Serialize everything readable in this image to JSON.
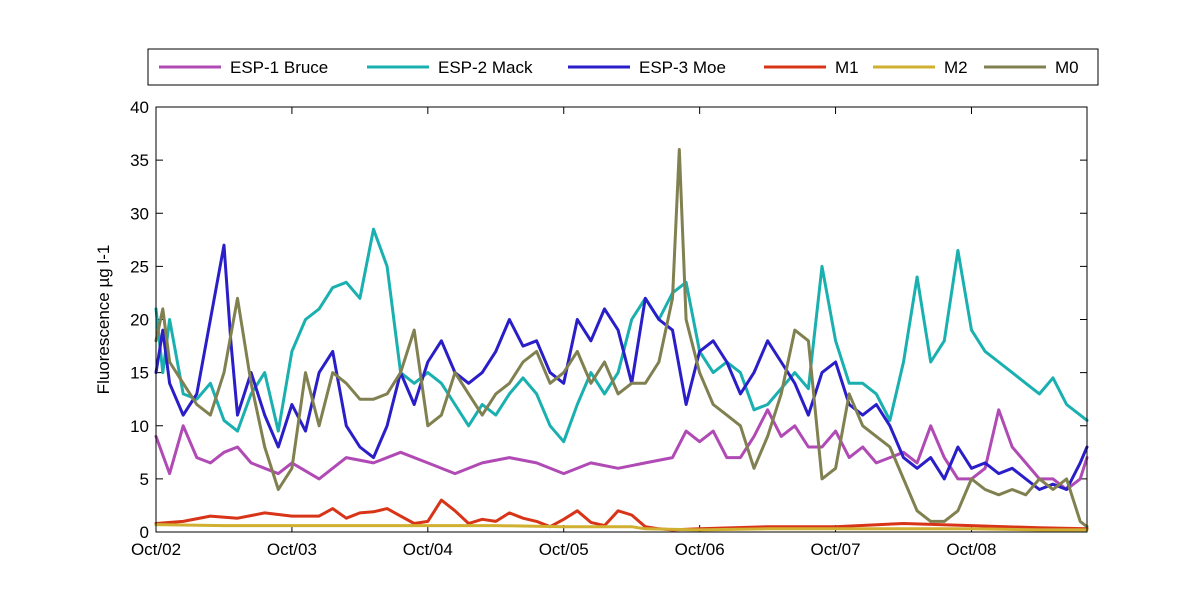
{
  "chart_data": {
    "type": "line",
    "title": "",
    "xlabel": "",
    "ylabel": "Fluorescence µg l-1",
    "ylim": [
      0,
      40
    ],
    "yticks": [
      0,
      5,
      10,
      15,
      20,
      25,
      30,
      35,
      40
    ],
    "xlim": [
      0,
      6.85
    ],
    "xticks": [
      0,
      1,
      2,
      3,
      4,
      5,
      6
    ],
    "xticklabels": [
      "Oct/02",
      "Oct/03",
      "Oct/04",
      "Oct/05",
      "Oct/06",
      "Oct/07",
      "Oct/08"
    ],
    "grid": false,
    "legend_placement": "top, horizontal, outside",
    "series": [
      {
        "name": "ESP-1 Bruce",
        "color": "#b04ab4",
        "x": [
          0,
          0.1,
          0.2,
          0.3,
          0.4,
          0.5,
          0.6,
          0.7,
          0.8,
          0.9,
          1.0,
          1.2,
          1.4,
          1.6,
          1.8,
          2.0,
          2.2,
          2.4,
          2.6,
          2.8,
          3.0,
          3.2,
          3.4,
          3.6,
          3.8,
          3.9,
          4.0,
          4.1,
          4.2,
          4.3,
          4.4,
          4.5,
          4.6,
          4.7,
          4.8,
          4.9,
          5.0,
          5.1,
          5.2,
          5.3,
          5.4,
          5.5,
          5.6,
          5.7,
          5.8,
          5.9,
          6.0,
          6.1,
          6.2,
          6.3,
          6.4,
          6.5,
          6.6,
          6.7,
          6.8,
          6.85
        ],
        "values": [
          9,
          5.5,
          10,
          7,
          6.5,
          7.5,
          8,
          6.5,
          6,
          5.5,
          6.5,
          5,
          7,
          6.5,
          7.5,
          6.5,
          5.5,
          6.5,
          7,
          6.5,
          5.5,
          6.5,
          6,
          6.5,
          7,
          9.5,
          8.5,
          9.5,
          7,
          7,
          9,
          11.5,
          9,
          10,
          8,
          8,
          9.5,
          7,
          8,
          6.5,
          7,
          7.5,
          6.5,
          10,
          7,
          5,
          5,
          6,
          11.5,
          8,
          6.5,
          5,
          5,
          4,
          5,
          7
        ]
      },
      {
        "name": "ESP-2 Mack",
        "color": "#1ab0b0",
        "x": [
          0,
          0.05,
          0.1,
          0.2,
          0.3,
          0.4,
          0.5,
          0.6,
          0.7,
          0.8,
          0.9,
          1.0,
          1.1,
          1.2,
          1.3,
          1.4,
          1.5,
          1.6,
          1.7,
          1.8,
          1.9,
          2.0,
          2.1,
          2.2,
          2.3,
          2.4,
          2.5,
          2.6,
          2.7,
          2.8,
          2.9,
          3.0,
          3.1,
          3.2,
          3.3,
          3.4,
          3.5,
          3.6,
          3.7,
          3.8,
          3.9,
          4.0,
          4.1,
          4.2,
          4.3,
          4.4,
          4.5,
          4.6,
          4.7,
          4.8,
          4.9,
          5.0,
          5.1,
          5.2,
          5.3,
          5.4,
          5.5,
          5.6,
          5.7,
          5.8,
          5.9,
          6.0,
          6.1,
          6.2,
          6.3,
          6.4,
          6.5,
          6.6,
          6.7,
          6.8,
          6.85
        ],
        "values": [
          21,
          15,
          20,
          13,
          12.5,
          14,
          10.5,
          9.5,
          13,
          15,
          9.5,
          17,
          20,
          21,
          23,
          23.5,
          22,
          28.5,
          25,
          15,
          14,
          15,
          14,
          12,
          10,
          12,
          11,
          13,
          14.5,
          13,
          10,
          8.5,
          12,
          15,
          13,
          15,
          20,
          22,
          20,
          22.5,
          23.5,
          17,
          15,
          16,
          15,
          11.5,
          12,
          13.5,
          15,
          13.5,
          25,
          18,
          14,
          14,
          13,
          10.5,
          16,
          24,
          16,
          18,
          26.5,
          19,
          17,
          16,
          15,
          14,
          13,
          14.5,
          12,
          11,
          10.5
        ]
      },
      {
        "name": "ESP-3 Moe",
        "color": "#2a1ec8",
        "x": [
          0,
          0.05,
          0.1,
          0.2,
          0.3,
          0.4,
          0.5,
          0.55,
          0.6,
          0.7,
          0.8,
          0.9,
          1.0,
          1.1,
          1.2,
          1.3,
          1.4,
          1.5,
          1.6,
          1.7,
          1.8,
          1.9,
          2.0,
          2.1,
          2.2,
          2.3,
          2.4,
          2.5,
          2.6,
          2.7,
          2.8,
          2.9,
          3.0,
          3.1,
          3.2,
          3.3,
          3.4,
          3.5,
          3.6,
          3.7,
          3.8,
          3.9,
          4.0,
          4.1,
          4.2,
          4.3,
          4.4,
          4.5,
          4.6,
          4.7,
          4.8,
          4.9,
          5.0,
          5.1,
          5.2,
          5.3,
          5.4,
          5.5,
          5.6,
          5.7,
          5.8,
          5.9,
          6.0,
          6.1,
          6.2,
          6.3,
          6.4,
          6.5,
          6.6,
          6.7,
          6.8,
          6.85
        ],
        "values": [
          15,
          19,
          14,
          11,
          13,
          20,
          27,
          18,
          11,
          15,
          11,
          8,
          12,
          9.5,
          15,
          17,
          10,
          8,
          7,
          10,
          15,
          12,
          16,
          18,
          15,
          14,
          15,
          17,
          20,
          17.5,
          18,
          15,
          14,
          20,
          18,
          21,
          19,
          14,
          22,
          20,
          19,
          12,
          17,
          18,
          16,
          13,
          15,
          18,
          16,
          14,
          11,
          15,
          16,
          12,
          11,
          12,
          10,
          7,
          6,
          7,
          5,
          8,
          6,
          6.5,
          5.5,
          6,
          5,
          4,
          4.5,
          4,
          6.5,
          8
        ]
      },
      {
        "name": "M1",
        "color": "#d83418",
        "x": [
          0,
          0.2,
          0.4,
          0.6,
          0.8,
          1.0,
          1.2,
          1.3,
          1.4,
          1.5,
          1.6,
          1.7,
          1.8,
          1.9,
          2.0,
          2.1,
          2.2,
          2.3,
          2.4,
          2.5,
          2.6,
          2.7,
          2.8,
          2.9,
          3.0,
          3.1,
          3.2,
          3.3,
          3.4,
          3.5,
          3.6,
          3.7,
          3.8,
          4.0,
          4.5,
          5.0,
          5.5,
          6.0,
          6.5,
          6.85
        ],
        "values": [
          0.8,
          1.0,
          1.5,
          1.3,
          1.8,
          1.5,
          1.5,
          2.2,
          1.3,
          1.8,
          1.9,
          2.2,
          1.5,
          0.8,
          1.0,
          3.0,
          2.0,
          0.8,
          1.2,
          1.0,
          1.8,
          1.3,
          1.0,
          0.5,
          1.2,
          2.0,
          0.9,
          0.6,
          2.0,
          1.6,
          0.5,
          0.3,
          0.2,
          0.3,
          0.5,
          0.5,
          0.8,
          0.6,
          0.4,
          0.3
        ]
      },
      {
        "name": "M2",
        "color": "#d0b030",
        "x": [
          0,
          0.5,
          1.0,
          1.5,
          2.0,
          2.5,
          3.0,
          3.5,
          3.6,
          4.0,
          4.5,
          5.0,
          5.5,
          6.0,
          6.5,
          6.85
        ],
        "values": [
          0.7,
          0.6,
          0.6,
          0.6,
          0.6,
          0.6,
          0.5,
          0.5,
          0.3,
          0.2,
          0.3,
          0.3,
          0.3,
          0.3,
          0.2,
          0.2
        ]
      },
      {
        "name": "M0",
        "color": "#808050",
        "x": [
          0,
          0.05,
          0.1,
          0.2,
          0.3,
          0.4,
          0.5,
          0.6,
          0.7,
          0.8,
          0.9,
          1.0,
          1.1,
          1.2,
          1.3,
          1.4,
          1.5,
          1.6,
          1.7,
          1.8,
          1.9,
          2.0,
          2.1,
          2.2,
          2.3,
          2.4,
          2.5,
          2.6,
          2.7,
          2.8,
          2.9,
          3.0,
          3.1,
          3.2,
          3.3,
          3.4,
          3.5,
          3.6,
          3.7,
          3.8,
          3.85,
          3.9,
          4.0,
          4.1,
          4.2,
          4.3,
          4.4,
          4.5,
          4.6,
          4.7,
          4.8,
          4.9,
          5.0,
          5.1,
          5.2,
          5.3,
          5.4,
          5.5,
          5.6,
          5.7,
          5.8,
          5.9,
          6.0,
          6.1,
          6.2,
          6.3,
          6.4,
          6.5,
          6.6,
          6.7,
          6.8,
          6.85
        ],
        "values": [
          18,
          21,
          16,
          14,
          12,
          11,
          15,
          22,
          14,
          8,
          4,
          6,
          15,
          10,
          15,
          14,
          12.5,
          12.5,
          13,
          15,
          19,
          10,
          11,
          15,
          13,
          11,
          13,
          14,
          16,
          17,
          14,
          15,
          17,
          14,
          16,
          13,
          14,
          14,
          16,
          22,
          36,
          20,
          15,
          12,
          11,
          10,
          6,
          9,
          13,
          19,
          18,
          5,
          6,
          13,
          10,
          9,
          8,
          5,
          2,
          1,
          1,
          2,
          5,
          4,
          3.5,
          4,
          3.5,
          5,
          4,
          5,
          1,
          0.5
        ]
      }
    ]
  }
}
